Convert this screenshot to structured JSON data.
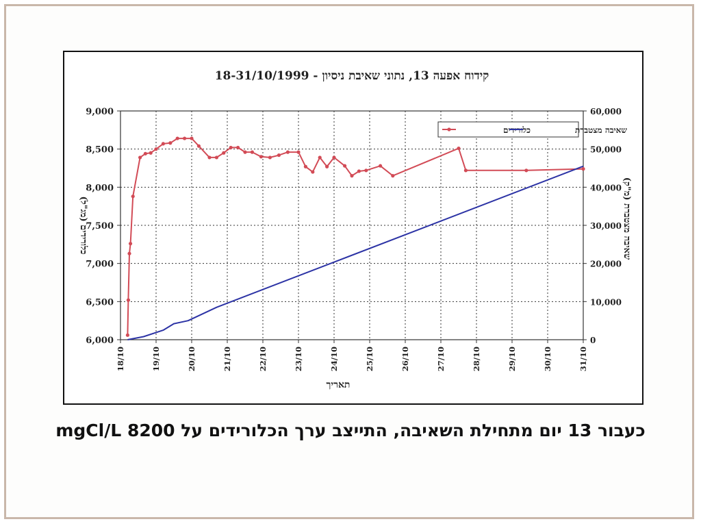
{
  "caption": {
    "text": "כעבור 13 יום מתחילת השאיבה, התייצב ערך הכלורידים על 8200 mgCl/L"
  },
  "chart_data": {
    "type": "line",
    "title": "קידוח אפעה 13, נתוני שאיבת ניסיון - 18-31/10/1999",
    "xlabel": "תאריך",
    "ylabel_left": "כלורידים (מג\"ל)",
    "ylabel_right": "שאיבה מצטברת (מ\"ק)",
    "x_ticks": [
      "18/10",
      "19/10",
      "20/10",
      "21/10",
      "22/10",
      "23/10",
      "24/10",
      "25/10",
      "26/10",
      "27/10",
      "28/10",
      "29/10",
      "30/10",
      "31/10"
    ],
    "x_range": [
      0,
      13
    ],
    "y_left_range": [
      6000,
      9000
    ],
    "y_left_ticks": [
      "6,000",
      "6,500",
      "7,000",
      "7,500",
      "8,000",
      "8,500",
      "9,000"
    ],
    "y_left_tick_values": [
      6000,
      6500,
      7000,
      7500,
      8000,
      8500,
      9000
    ],
    "y_right_range": [
      0,
      60000
    ],
    "y_right_ticks": [
      "0",
      "10,000",
      "20,000",
      "30,000",
      "40,000",
      "50,000",
      "60,000"
    ],
    "y_right_tick_values": [
      0,
      10000,
      20000,
      30000,
      40000,
      50000,
      60000
    ],
    "grid": true,
    "legend_position": "top-right",
    "series": [
      {
        "name": "כלורידים",
        "axis": "left",
        "color": "#d24b56",
        "markers": true,
        "x": [
          0.2,
          0.22,
          0.25,
          0.28,
          0.35,
          0.55,
          0.7,
          0.85,
          1.0,
          1.2,
          1.4,
          1.6,
          1.8,
          2.0,
          2.2,
          2.5,
          2.7,
          2.9,
          3.1,
          3.3,
          3.5,
          3.7,
          3.95,
          4.2,
          4.45,
          4.7,
          5.0,
          5.2,
          5.4,
          5.6,
          5.8,
          6.0,
          6.3,
          6.5,
          6.7,
          6.9,
          7.3,
          7.65,
          9.5,
          9.7,
          11.4,
          13.0
        ],
        "y": [
          6060,
          6520,
          7130,
          7260,
          7880,
          8390,
          8440,
          8450,
          8500,
          8570,
          8580,
          8640,
          8640,
          8640,
          8540,
          8390,
          8390,
          8450,
          8520,
          8520,
          8460,
          8460,
          8400,
          8390,
          8420,
          8460,
          8460,
          8270,
          8200,
          8390,
          8270,
          8390,
          8280,
          8150,
          8210,
          8220,
          8280,
          8150,
          8510,
          8220,
          8220,
          8240
        ]
      },
      {
        "name": "שאיבה מצטברת",
        "axis": "right",
        "color": "#2c33a5",
        "markers": false,
        "x": [
          0.2,
          0.65,
          1.2,
          1.5,
          1.9,
          2.7,
          13.0
        ],
        "y": [
          0,
          800,
          2500,
          4200,
          5000,
          8500,
          45500
        ]
      }
    ]
  }
}
